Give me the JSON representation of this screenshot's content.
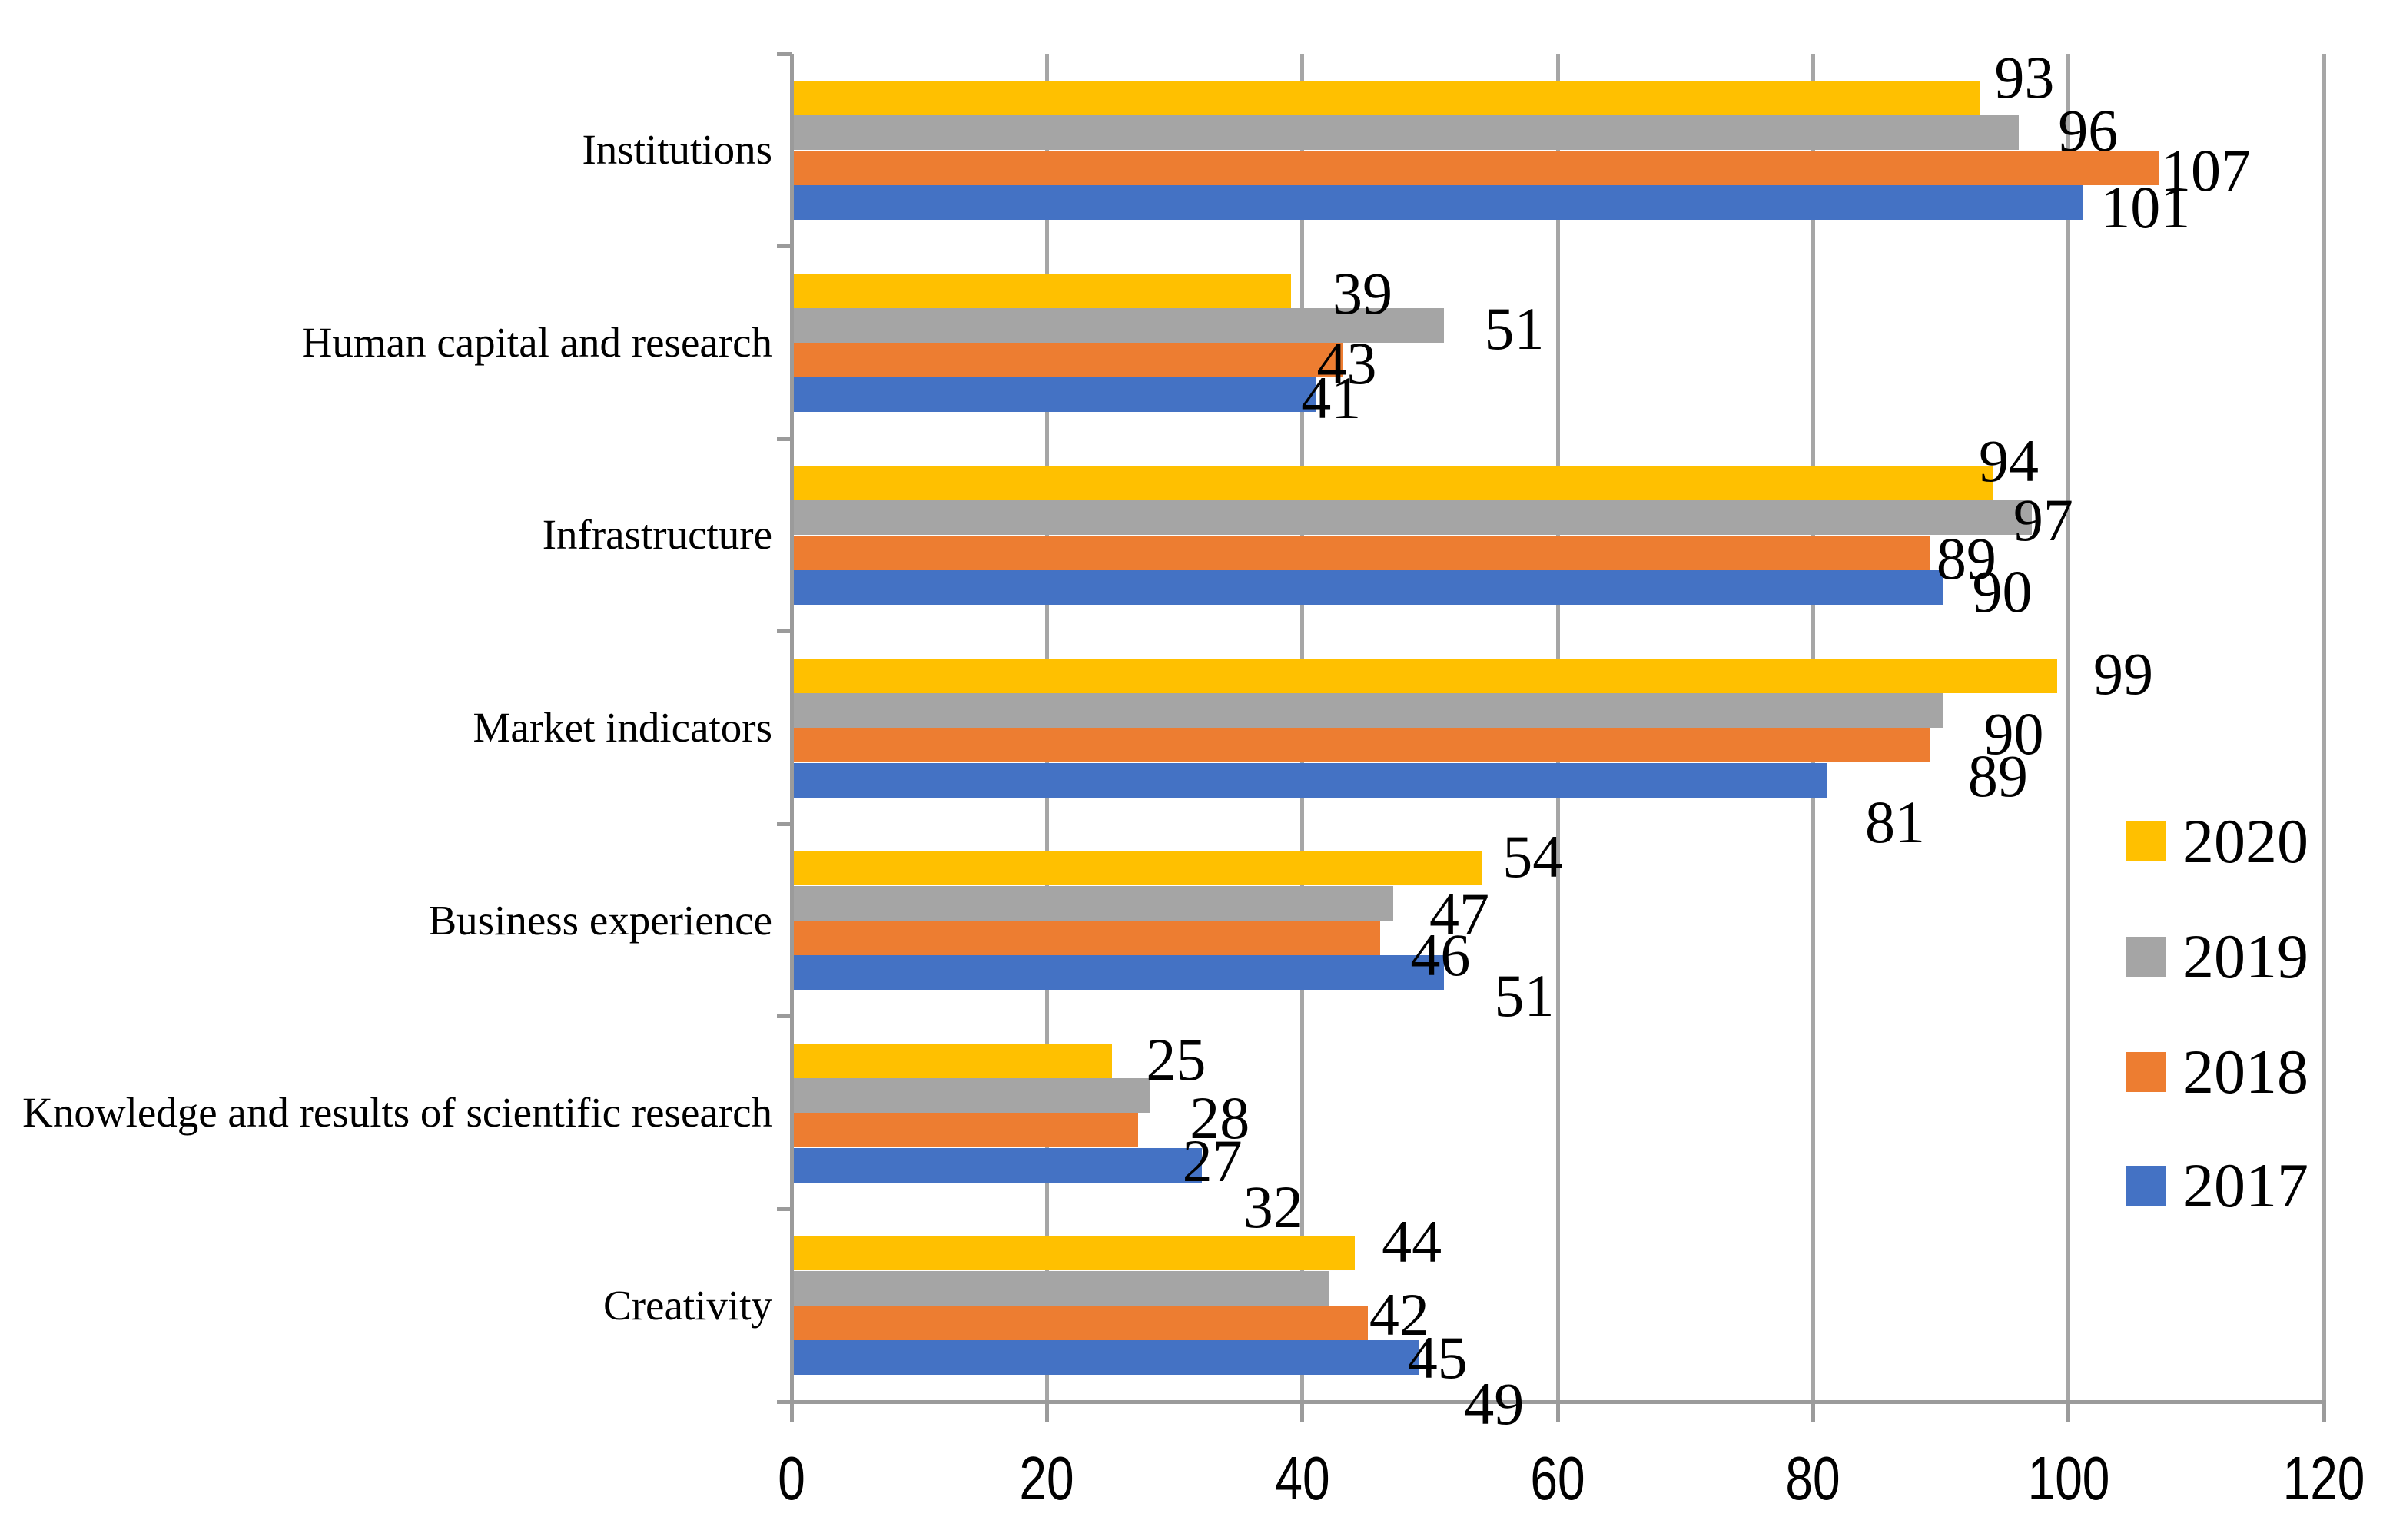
{
  "chart_data": {
    "type": "bar",
    "orientation": "horizontal",
    "title": "",
    "xlabel": "",
    "ylabel": "",
    "xlim": [
      0,
      120
    ],
    "x_ticks": [
      0,
      20,
      40,
      60,
      80,
      100,
      120
    ],
    "grid": true,
    "legend_position": "right",
    "categories": [
      "Institutions",
      "Human capital and research",
      "Infrastructure",
      "Market indicators",
      "Business experience",
      "Knowledge and results of scientific research",
      "Creativity"
    ],
    "series": [
      {
        "name": "2020",
        "color": "#FFC000",
        "values": [
          93,
          39,
          94,
          99,
          54,
          25,
          44
        ]
      },
      {
        "name": "2019",
        "color": "#A5A5A5",
        "values": [
          96,
          51,
          97,
          90,
          47,
          28,
          42
        ]
      },
      {
        "name": "2018",
        "color": "#ED7D31",
        "values": [
          107,
          43,
          89,
          89,
          46,
          27,
          45
        ]
      },
      {
        "name": "2017",
        "color": "#4472C4",
        "values": [
          101,
          41,
          90,
          81,
          51,
          32,
          49
        ]
      }
    ]
  },
  "label_offsets": {
    "comment_dx_dy": "per-series per-category pixel nudges of data labels, matching source figure",
    "dx": [
      [
        0,
        36,
        -37,
        29,
        8,
        26,
        17
      ],
      [
        33,
        34,
        -42,
        36,
        29,
        33,
        34
      ],
      [
        -16,
        -51,
        -9,
        32,
        21,
        40,
        34
      ],
      [
        5,
        -38,
        21,
        31,
        47,
        36,
        41
      ]
    ],
    "dy": [
      [
        -27,
        4,
        -29,
        -2,
        -15,
        -2,
        -15
      ],
      [
        -3,
        4,
        3,
        30,
        15,
        29,
        35
      ],
      [
        4,
        4,
        8,
        40,
        22,
        40,
        45
      ],
      [
        6,
        4,
        5,
        55,
        30,
        55,
        60
      ]
    ]
  },
  "style": {
    "gridline_color": "#a6a6a6",
    "axis_color": "#9b9b9b",
    "text_color": "#000000",
    "background": "#ffffff"
  }
}
